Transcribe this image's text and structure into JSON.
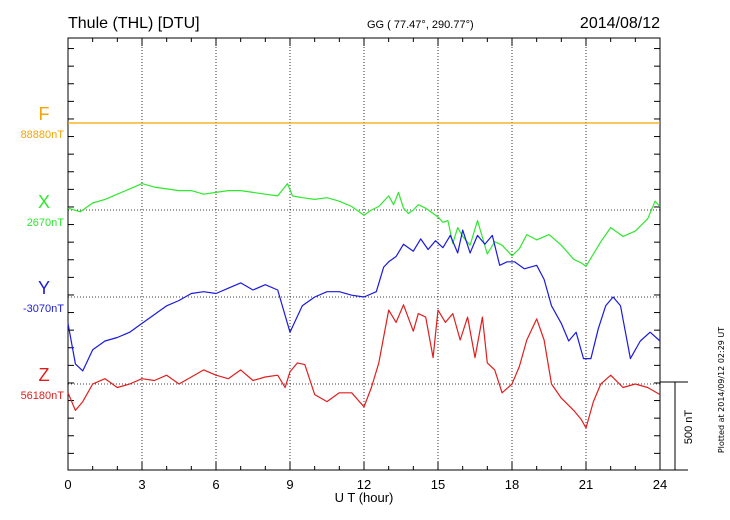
{
  "header": {
    "station": "Thule (THL)  [DTU]",
    "coords": "GG ( 77.47°, 290.77°)",
    "date": "2014/08/12"
  },
  "plotted_note": "Plotted at 2014/09/12 02:29 UT",
  "chart_data": {
    "type": "line",
    "xlabel": "U T (hour)",
    "xlim": [
      0,
      24
    ],
    "xticks": [
      "0",
      "3",
      "6",
      "9",
      "12",
      "15",
      "18",
      "21",
      "24"
    ],
    "scale_bar": {
      "label": "500 nT",
      "value_nT": 500
    },
    "series": [
      {
        "name": "F",
        "baseline": "88880nT",
        "color": "#f5a500",
        "x": [
          0,
          24
        ],
        "values": [
          0,
          0
        ]
      },
      {
        "name": "X",
        "baseline": "2670nT",
        "color": "#2ee82e",
        "x": [
          0,
          0.5,
          1,
          1.5,
          2,
          2.5,
          3,
          3.5,
          4,
          4.5,
          5,
          5.5,
          6,
          6.5,
          7,
          7.5,
          8,
          8.5,
          8.9,
          9.1,
          9.5,
          10,
          10.5,
          11,
          11.5,
          12,
          12.3,
          12.6,
          13,
          13.2,
          13.4,
          13.6,
          13.8,
          14,
          14.2,
          14.5,
          14.8,
          15,
          15.2,
          15.4,
          15.6,
          15.8,
          16,
          16.3,
          16.6,
          17,
          17.3,
          17.6,
          18,
          18.3,
          18.6,
          19,
          19.5,
          20,
          20.5,
          20.8,
          21,
          21.3,
          21.6,
          22,
          22.5,
          23,
          23.5,
          23.8,
          24
        ],
        "values": [
          10,
          -10,
          40,
          60,
          90,
          120,
          150,
          130,
          120,
          110,
          110,
          90,
          100,
          110,
          110,
          100,
          90,
          80,
          150,
          80,
          70,
          60,
          70,
          50,
          20,
          -30,
          0,
          20,
          80,
          30,
          100,
          10,
          -20,
          0,
          30,
          10,
          -20,
          -40,
          -70,
          -60,
          -190,
          -100,
          -150,
          -200,
          -60,
          -250,
          -180,
          -200,
          -260,
          -220,
          -140,
          -170,
          -140,
          -200,
          -280,
          -300,
          -320,
          -250,
          -180,
          -100,
          -150,
          -120,
          -50,
          50,
          20
        ]
      },
      {
        "name": "Y",
        "baseline": "-3070nT",
        "color": "#1a1ae0",
        "x": [
          0,
          0.3,
          0.6,
          1,
          1.5,
          2,
          2.5,
          3,
          3.5,
          4,
          4.5,
          5,
          5.5,
          6,
          6.5,
          7,
          7.5,
          8,
          8.5,
          9,
          9.5,
          10,
          10.5,
          11,
          11.5,
          12,
          12.5,
          12.8,
          13,
          13.3,
          13.6,
          14,
          14.3,
          14.6,
          14.9,
          15.2,
          15.5,
          15.8,
          16,
          16.3,
          16.6,
          16.9,
          17.2,
          17.5,
          17.8,
          18.1,
          18.5,
          19,
          19.3,
          19.6,
          20,
          20.3,
          20.6,
          20.9,
          21.2,
          21.5,
          21.8,
          22.1,
          22.4,
          22.8,
          23.2,
          23.6,
          24
        ],
        "values": [
          -150,
          -380,
          -420,
          -300,
          -250,
          -230,
          -200,
          -150,
          -100,
          -50,
          -20,
          20,
          30,
          20,
          50,
          80,
          40,
          70,
          40,
          -200,
          -50,
          0,
          30,
          30,
          10,
          0,
          30,
          170,
          200,
          230,
          300,
          260,
          330,
          270,
          320,
          280,
          350,
          250,
          380,
          250,
          350,
          300,
          350,
          180,
          200,
          200,
          160,
          180,
          100,
          -50,
          -150,
          -250,
          -200,
          -350,
          -350,
          -180,
          -50,
          0,
          -50,
          -350,
          -250,
          -200,
          -250
        ]
      },
      {
        "name": "Z",
        "baseline": "56180nT",
        "color": "#e01e1e",
        "x": [
          0,
          0.3,
          0.6,
          1,
          1.5,
          2,
          2.5,
          3,
          3.5,
          4,
          4.5,
          5,
          5.5,
          6,
          6.5,
          7,
          7.5,
          8,
          8.5,
          8.8,
          9,
          9.3,
          9.6,
          10,
          10.5,
          11,
          11.5,
          12,
          12.3,
          12.6,
          13,
          13.3,
          13.6,
          14,
          14.2,
          14.5,
          14.8,
          15,
          15.3,
          15.6,
          15.9,
          16.2,
          16.5,
          16.8,
          17,
          17.3,
          17.6,
          18,
          18.3,
          18.6,
          19,
          19.3,
          19.6,
          20,
          20.5,
          20.8,
          21,
          21.3,
          21.6,
          22,
          22.5,
          23,
          23.5,
          24
        ],
        "values": [
          -50,
          -150,
          -100,
          0,
          30,
          -20,
          0,
          30,
          20,
          50,
          0,
          40,
          80,
          50,
          30,
          80,
          20,
          40,
          50,
          -20,
          70,
          120,
          110,
          -60,
          -100,
          -50,
          -50,
          -130,
          -20,
          120,
          420,
          350,
          450,
          300,
          400,
          380,
          150,
          420,
          350,
          400,
          250,
          380,
          150,
          380,
          120,
          80,
          -50,
          0,
          100,
          250,
          370,
          250,
          0,
          -80,
          -150,
          -200,
          -250,
          -100,
          0,
          50,
          -20,
          0,
          -20,
          -60
        ]
      }
    ]
  }
}
